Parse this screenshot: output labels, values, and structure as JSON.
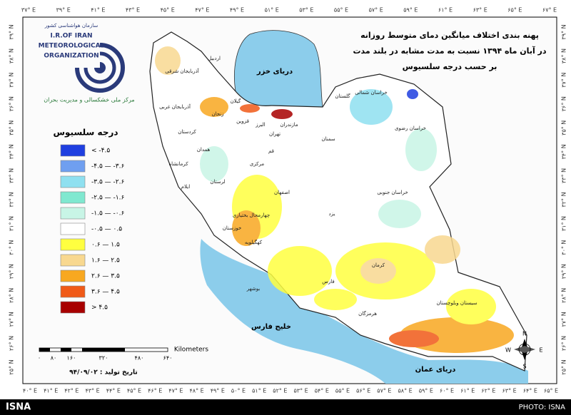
{
  "title": [
    "پهنه بندی اختلاف میانگین دمای متوسط روزانه",
    "در آبان ماه ۱۳۹۴ نسبت به مدت مشابه در بلند مدت",
    "بر حسب درجه سلسیوس"
  ],
  "logo": {
    "fa": "سازمان هواشناسی کشور",
    "en": [
      "I.R.OF IRAN",
      "METEOROLOGICAL",
      "ORGANIZATION"
    ],
    "center": "مرکز ملی خشکسالی و مدیریت بحران"
  },
  "legend": {
    "title": "درجه سلسیوس",
    "items": [
      {
        "label": "< -۴.۵",
        "color": "#1f3fe0"
      },
      {
        "label": "-۴.۵ — -۳.۶",
        "color": "#6f9ff0"
      },
      {
        "label": "-۳.۵ — -۲.۶",
        "color": "#8fe0f0"
      },
      {
        "label": "-۲.۵ — -۱.۶",
        "color": "#80e8d0"
      },
      {
        "label": "-۱.۵ — -۰.۶",
        "color": "#c8f5e6"
      },
      {
        "label": "-۰.۵ — ۰.۵",
        "color": "#ffffff"
      },
      {
        "label": "۰.۶ — ۱.۵",
        "color": "#ffff40"
      },
      {
        "label": "۱.۶ — ۲.۵",
        "color": "#f8d890"
      },
      {
        "label": "۲.۶ — ۳.۵",
        "color": "#f8a820"
      },
      {
        "label": "۳.۶ — ۴.۵",
        "color": "#f05a18"
      },
      {
        "label": "> ۴.۵",
        "color": "#a80000"
      }
    ]
  },
  "water": [
    "دریای خزر",
    "خلیج فارس",
    "دریای عمان"
  ],
  "provinces": [
    "آذربایجان شرقی",
    "اردبیل",
    "آذربایجان غربی",
    "زنجان",
    "گیلان",
    "کردستان",
    "قزوین",
    "البرز",
    "تهران",
    "مازندران",
    "گلستان",
    "خراسان شمالی",
    "خراسان رضوی",
    "سمنان",
    "همدان",
    "مرکزی",
    "قم",
    "کرمانشاه",
    "لرستان",
    "ایلام",
    "اصفهان",
    "خوزستان",
    "چهارمحال بختیاری",
    "کهگیلویه",
    "یزد",
    "خراسان جنوبی",
    "فارس",
    "بوشهر",
    "کرمان",
    "هرمزگان",
    "سیستان وبلوچستان"
  ],
  "scale": {
    "labels": [
      "۰",
      "۸۰",
      "۱۶۰",
      "۳۲۰",
      "۴۸۰",
      "۶۴۰"
    ],
    "unit": "Kilometers"
  },
  "date": "تاریخ تولید : ۹۴/۰۹/۰۲",
  "compass": [
    "N",
    "W",
    "E",
    "S"
  ],
  "top_ticks": [
    "۳۷° E",
    "۳۹° E",
    "۴۱° E",
    "۴۳° E",
    "۴۵° E",
    "۴۷° E",
    "۴۹° E",
    "۵۱° E",
    "۵۳° E",
    "۵۵° E",
    "۵۷° E",
    "۵۹° E",
    "۶۱° E",
    "۶۳° E",
    "۶۵° E",
    "۶۷° E"
  ],
  "bottom_ticks": [
    "۴۰° E",
    "۴۱° E",
    "۴۲° E",
    "۴۳° E",
    "۴۴° E",
    "۴۵° E",
    "۴۶° E",
    "۴۷° E",
    "۴۸° E",
    "۴۹° E",
    "۵۰° E",
    "۵۱° E",
    "۵۲° E",
    "۵۳° E",
    "۵۴° E",
    "۵۵° E",
    "۵۶° E",
    "۵۷° E",
    "۵۸° E",
    "۵۹° E",
    "۶۰° E",
    "۶۱° E",
    "۶۲° E",
    "۶۳° E",
    "۶۴° E",
    "۶۵° E"
  ],
  "left_ticks": [
    "۳۹° N",
    "۳۸° N",
    "۳۷° N",
    "۳۶° N",
    "۳۵° N",
    "۳۴° N",
    "۳۳° N",
    "۳۲° N",
    "۳۱° N",
    "۳۰° N",
    "۲۹° N",
    "۲۸° N",
    "۲۷° N",
    "۲۶° N",
    "۲۵° N"
  ],
  "right_ticks": [
    "۳۹° N",
    "۳۸° N",
    "۳۷° N",
    "۳۶° N",
    "۳۵° N",
    "۳۴° N",
    "۳۳° N",
    "۳۲° N",
    "۳۱° N",
    "۳۰° N",
    "۲۹° N",
    "۲۸° N",
    "۲۷° N",
    "۲۶° N",
    "۲۵° N"
  ],
  "footer": {
    "left": "ISNA",
    "right": "PHOTO: ISNA"
  }
}
